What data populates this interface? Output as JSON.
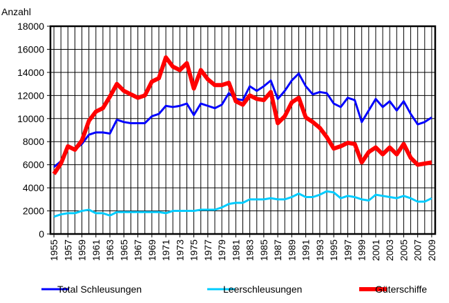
{
  "chart_data": {
    "type": "line",
    "y_label": "Anzahl",
    "x": [
      1955,
      1956,
      1957,
      1958,
      1959,
      1960,
      1961,
      1962,
      1963,
      1964,
      1965,
      1966,
      1967,
      1968,
      1969,
      1970,
      1971,
      1972,
      1973,
      1974,
      1975,
      1976,
      1977,
      1978,
      1979,
      1980,
      1981,
      1982,
      1983,
      1984,
      1985,
      1986,
      1987,
      1988,
      1989,
      1990,
      1991,
      1992,
      1993,
      1994,
      1995,
      1996,
      1997,
      1998,
      1999,
      2000,
      2001,
      2002,
      2003,
      2004,
      2005,
      2006,
      2007,
      2008,
      2009
    ],
    "xlim": [
      1954.5,
      2009.5
    ],
    "xticks": [
      1955,
      1957,
      1959,
      1961,
      1963,
      1965,
      1967,
      1969,
      1971,
      1973,
      1975,
      1977,
      1979,
      1981,
      1983,
      1985,
      1987,
      1989,
      1991,
      1993,
      1995,
      1997,
      1999,
      2001,
      2003,
      2005,
      2007,
      2009
    ],
    "ylim": [
      0,
      18000
    ],
    "yticks": [
      0,
      2000,
      4000,
      6000,
      8000,
      10000,
      12000,
      14000,
      16000,
      18000
    ],
    "grid": true,
    "legend": "bottom",
    "series": [
      {
        "name": "Total Schleusungen",
        "color": "#0000ff",
        "width": 3,
        "values": [
          5800,
          6300,
          7500,
          7300,
          7800,
          8600,
          8800,
          8800,
          8700,
          9900,
          9700,
          9600,
          9600,
          9600,
          10200,
          10400,
          11100,
          11000,
          11100,
          11300,
          10300,
          11300,
          11100,
          10900,
          11200,
          12200,
          11700,
          11600,
          12800,
          12400,
          12800,
          13300,
          11700,
          12400,
          13300,
          13900,
          12800,
          12100,
          12300,
          12200,
          11300,
          11000,
          11800,
          11600,
          9700,
          10700,
          11700,
          11000,
          11500,
          10700,
          11500,
          10400,
          9500,
          9700,
          10100
        ]
      },
      {
        "name": "Leerschleusungen",
        "color": "#00ccff",
        "width": 3,
        "values": [
          1500,
          1700,
          1800,
          1800,
          2000,
          2100,
          1800,
          1800,
          1600,
          1900,
          1900,
          1900,
          1900,
          1900,
          1900,
          1900,
          1800,
          2000,
          2000,
          2000,
          2000,
          2100,
          2100,
          2100,
          2300,
          2600,
          2700,
          2700,
          3000,
          3000,
          3000,
          3100,
          3000,
          3000,
          3200,
          3500,
          3200,
          3200,
          3400,
          3700,
          3600,
          3100,
          3300,
          3200,
          3000,
          2900,
          3400,
          3300,
          3200,
          3100,
          3300,
          3100,
          2800,
          2800,
          3100
        ]
      },
      {
        "name": "Güterschiffe",
        "color": "#ff0000",
        "width": 6,
        "values": [
          5200,
          6100,
          7600,
          7300,
          8100,
          9800,
          10600,
          10900,
          11900,
          13000,
          12400,
          12100,
          11800,
          12000,
          13200,
          13500,
          15300,
          14500,
          14200,
          14800,
          12600,
          14200,
          13400,
          12900,
          12900,
          13100,
          11500,
          11200,
          12000,
          11700,
          11600,
          12300,
          9600,
          10200,
          11400,
          11800,
          10100,
          9700,
          9200,
          8400,
          7400,
          7600,
          7900,
          7800,
          6200,
          7100,
          7500,
          6900,
          7500,
          6900,
          7800,
          6600,
          6000,
          6100,
          6200
        ]
      }
    ]
  }
}
